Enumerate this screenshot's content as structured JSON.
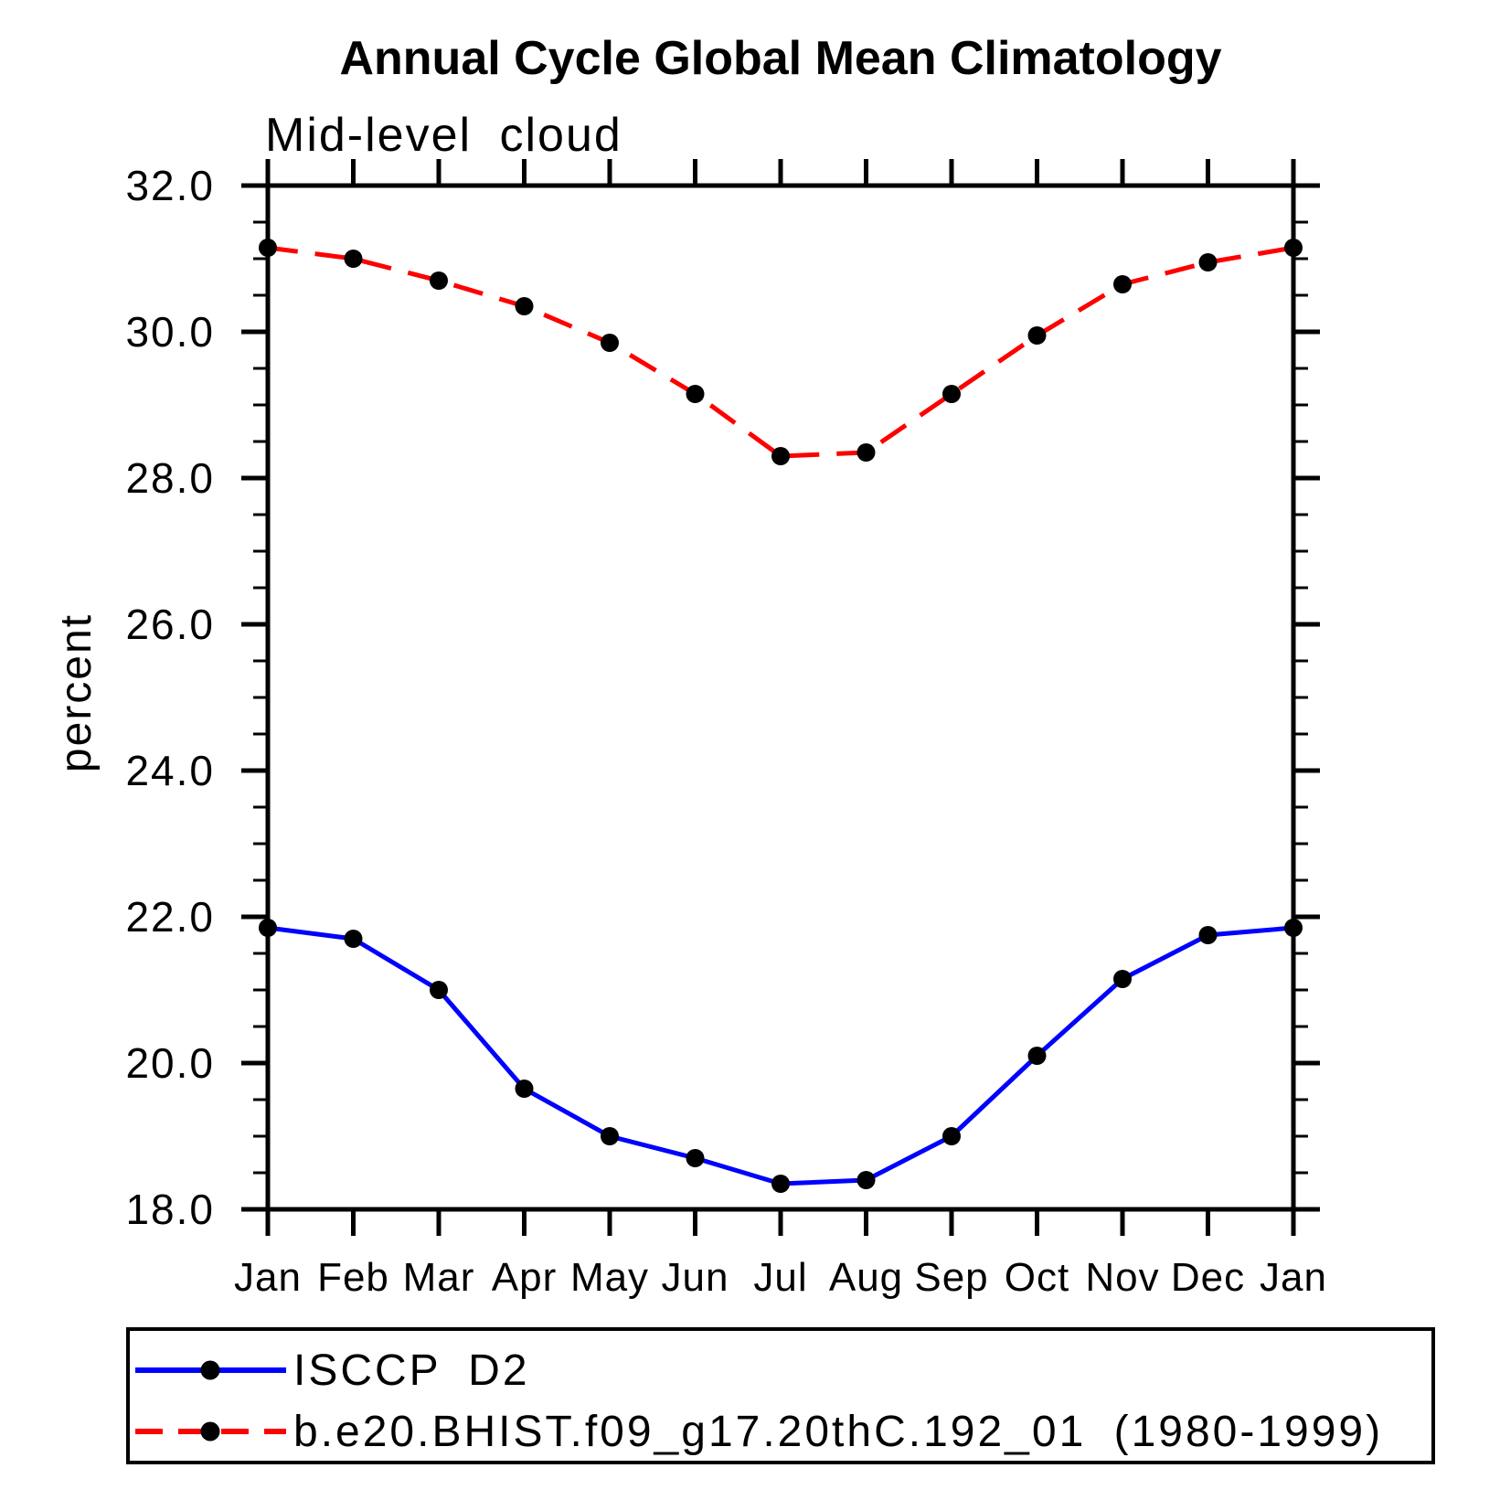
{
  "chart_data": {
    "type": "line",
    "title": "Annual Cycle Global Mean Climatology",
    "subtitle": "Mid-level cloud",
    "ylabel": "percent",
    "xlabel": "",
    "categories": [
      "Jan",
      "Feb",
      "Mar",
      "Apr",
      "May",
      "Jun",
      "Jul",
      "Aug",
      "Sep",
      "Oct",
      "Nov",
      "Dec",
      "Jan"
    ],
    "ylim": [
      18.0,
      32.0
    ],
    "ytick_values": [
      18,
      20,
      22,
      24,
      26,
      28,
      30,
      32
    ],
    "ytick_labels": [
      "18.0",
      "20.0",
      "22.0",
      "24.0",
      "26.0",
      "28.0",
      "30.0",
      "32.0"
    ],
    "y_minor_step": 0.5,
    "grid": false,
    "legend_position": "bottom",
    "axis_color": "#000000",
    "marker_color": "#000000",
    "series": [
      {
        "name": "ISCCP D2",
        "color": "#0000ff",
        "style": "solid",
        "marker": "circle",
        "values": [
          21.85,
          21.7,
          21.0,
          19.65,
          19.0,
          18.7,
          18.35,
          18.4,
          19.0,
          20.1,
          21.15,
          21.75,
          21.85
        ]
      },
      {
        "name": "b.e20.BHIST.f09_g17.20thC.192_01 (1980-1999)",
        "color": "#ff0000",
        "style": "dashed",
        "marker": "circle",
        "values": [
          31.15,
          31.0,
          30.7,
          30.35,
          29.85,
          29.15,
          28.3,
          28.35,
          29.15,
          29.95,
          30.65,
          30.95,
          31.15
        ]
      }
    ]
  }
}
